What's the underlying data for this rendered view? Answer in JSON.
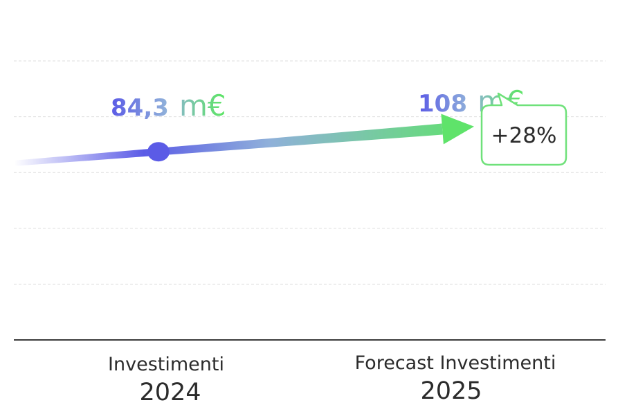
{
  "chart_data": {
    "type": "line",
    "categories": [
      "Investimenti",
      "Forecast Investimenti"
    ],
    "years": [
      "2024",
      "2025"
    ],
    "values": [
      84.3,
      108
    ],
    "value_labels": [
      {
        "number": "84,3",
        "unit": "m€"
      },
      {
        "number": "108",
        "unit": "m€"
      }
    ],
    "growth_label": "+28%",
    "title": "",
    "xlabel": "",
    "ylabel": "",
    "ylim": [
      0,
      125
    ],
    "grid": true,
    "colors": {
      "start": "#5b5be6",
      "end": "#5fe36a",
      "grid": "#dddddd",
      "axis": "#3a3a3a",
      "text": "#2b2b2b"
    }
  }
}
